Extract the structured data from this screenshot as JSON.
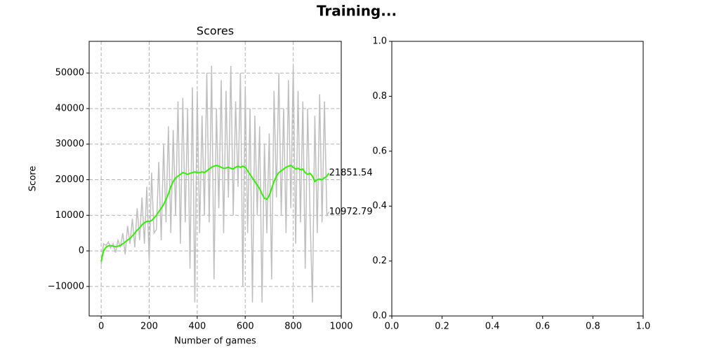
{
  "title": "Training...",
  "chart_data": [
    {
      "type": "line",
      "title": "Scores",
      "xlabel": "Number of games",
      "ylabel": "Score",
      "x": [
        0,
        10,
        20,
        30,
        40,
        50,
        60,
        70,
        80,
        90,
        100,
        110,
        120,
        130,
        140,
        150,
        160,
        170,
        180,
        190,
        200,
        210,
        220,
        230,
        240,
        250,
        260,
        270,
        280,
        290,
        300,
        310,
        320,
        330,
        340,
        350,
        360,
        370,
        380,
        390,
        400,
        410,
        420,
        430,
        440,
        450,
        460,
        470,
        480,
        490,
        500,
        510,
        520,
        530,
        540,
        550,
        560,
        570,
        580,
        590,
        600,
        610,
        620,
        630,
        640,
        650,
        660,
        670,
        680,
        690,
        700,
        710,
        720,
        730,
        740,
        750,
        760,
        770,
        780,
        790,
        800,
        810,
        820,
        830,
        840,
        850,
        860,
        870,
        880,
        890,
        900,
        910,
        920,
        930,
        940,
        949
      ],
      "series": [
        {
          "color": "#bfbfbf",
          "values": [
            -4000,
            2000,
            1500,
            2500,
            800,
            2000,
            -500,
            3000,
            1000,
            5000,
            -1000,
            7000,
            2000,
            9000,
            1000,
            12000,
            3000,
            15000,
            2000,
            18000,
            -3000,
            22000,
            5000,
            6000,
            25000,
            3000,
            30000,
            8000,
            35000,
            5000,
            34000,
            10000,
            42000,
            2000,
            43000,
            8000,
            40000,
            -5000,
            46000,
            -14500,
            45000,
            5000,
            38000,
            10000,
            50000,
            8000,
            52000,
            -8000,
            40000,
            12000,
            48000,
            5000,
            45000,
            15000,
            52000,
            10000,
            42000,
            18000,
            50000,
            -10000,
            46000,
            5000,
            40000,
            -14500,
            38000,
            10000,
            35000,
            -14500,
            30000,
            5000,
            33000,
            -8000,
            45000,
            15000,
            50000,
            10000,
            40000,
            5000,
            48000,
            12000,
            52000,
            2000,
            45000,
            8000,
            42000,
            -5000,
            40000,
            10000,
            -14500,
            38000,
            5000,
            44000,
            8000,
            42000,
            10000,
            10972.79
          ]
        },
        {
          "color": "#33ee00",
          "values": [
            -3000,
            0,
            1000,
            1400,
            1500,
            1300,
            1200,
            1300,
            1500,
            2000,
            2500,
            3000,
            3500,
            4200,
            5000,
            5800,
            6500,
            7300,
            7900,
            8300,
            8300,
            8500,
            9200,
            10000,
            11000,
            12000,
            13000,
            14500,
            16000,
            18000,
            19500,
            20500,
            21000,
            21500,
            22000,
            21800,
            21500,
            21800,
            22000,
            22200,
            22000,
            22000,
            22200,
            22000,
            22500,
            23000,
            23500,
            23800,
            24000,
            23800,
            23500,
            23200,
            23300,
            23500,
            23200,
            23000,
            23500,
            23800,
            23500,
            23800,
            23500,
            22500,
            21500,
            20500,
            19500,
            18500,
            17500,
            16000,
            14800,
            14500,
            15500,
            17500,
            19500,
            21000,
            22000,
            22500,
            23000,
            23500,
            23800,
            24000,
            23500,
            23000,
            23200,
            22800,
            23000,
            22000,
            21500,
            21800,
            21000,
            19500,
            20000,
            20200,
            20000,
            20500,
            21000,
            21851.54
          ]
        }
      ],
      "last_value_label": true,
      "xlim": [
        -50,
        1000
      ],
      "ylim": [
        -18300,
        58900
      ],
      "xticks": [
        0,
        200,
        400,
        600,
        800,
        1000
      ],
      "yticks": [
        {
          "value": -10000,
          "label": "−10000"
        },
        0,
        10000,
        20000,
        30000,
        40000,
        50000
      ],
      "grid": true
    },
    {
      "type": "line",
      "series": [],
      "xlim": [
        0,
        1
      ],
      "ylim": [
        0,
        1
      ],
      "xticks": [
        {
          "value": 0,
          "label": "0.0"
        },
        0.2,
        0.4,
        0.6,
        0.8,
        {
          "value": 1,
          "label": "1.0"
        }
      ],
      "yticks": [
        {
          "value": 0,
          "label": "0.0"
        },
        0.2,
        0.4,
        0.6,
        0.8,
        {
          "value": 1,
          "label": "1.0"
        }
      ],
      "grid": false
    }
  ]
}
